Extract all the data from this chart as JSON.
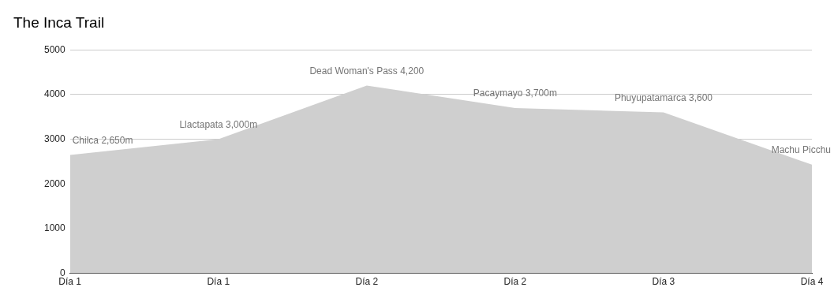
{
  "chart_data": {
    "type": "area",
    "title": "The Inca Trail",
    "categories": [
      "Día 1",
      "Día 1",
      "Día 2",
      "Día 2",
      "Día 3",
      "Día 4"
    ],
    "values": [
      2650,
      3000,
      4200,
      3700,
      3600,
      2430
    ],
    "value_labels": [
      "Chilca 2,650m",
      "Llactapata 3,000m",
      "Dead Woman's Pass 4,200",
      "Pacaymayo 3,700m",
      "Phuyupatamarca 3,600",
      "Machu Picchu"
    ],
    "color": "#cfcfcf",
    "ylim": [
      0,
      5000
    ],
    "yticks": [
      0,
      1000,
      2000,
      3000,
      4000,
      5000
    ],
    "grid": "y"
  }
}
